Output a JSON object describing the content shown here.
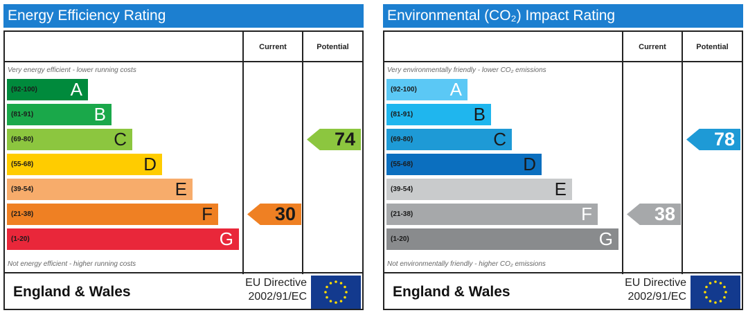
{
  "chart_data": [
    {
      "type": "bar",
      "title": "Energy Efficiency Rating",
      "column_headers": [
        "Current",
        "Potential"
      ],
      "top_note": "Very energy efficient - lower running costs",
      "bottom_note": "Not energy efficient - higher running costs",
      "bands": [
        {
          "range": "(92-100)",
          "letter": "A",
          "color": "#008a3c",
          "length": 0.35
        },
        {
          "range": "(81-91)",
          "letter": "B",
          "color": "#1aa84a",
          "length": 0.45
        },
        {
          "range": "(69-80)",
          "letter": "C",
          "color": "#8cc63f",
          "length": 0.54
        },
        {
          "range": "(55-68)",
          "letter": "D",
          "color": "#ffcc00",
          "length": 0.67
        },
        {
          "range": "(39-54)",
          "letter": "E",
          "color": "#f7ac6b",
          "length": 0.8
        },
        {
          "range": "(21-38)",
          "letter": "F",
          "color": "#ef8023",
          "length": 0.91
        },
        {
          "range": "(1-20)",
          "letter": "G",
          "color": "#e9273a",
          "length": 1.0
        }
      ],
      "current": {
        "value": "30",
        "band": "F",
        "color": "#ef8023"
      },
      "potential": {
        "value": "74",
        "band": "C",
        "color": "#8cc63f"
      },
      "footer_region": "England & Wales",
      "footer_directive": [
        "EU Directive",
        "2002/91/EC"
      ]
    },
    {
      "type": "bar",
      "title": "Environmental (CO₂) Impact Rating",
      "column_headers": [
        "Current",
        "Potential"
      ],
      "top_note": "Very environmentally friendly - lower CO₂ emissions",
      "bottom_note": "Not environmentally friendly - higher CO₂ emissions",
      "bands": [
        {
          "range": "(92-100)",
          "letter": "A",
          "color": "#5bc8f5",
          "length": 0.35
        },
        {
          "range": "(81-91)",
          "letter": "B",
          "color": "#1fb6ee",
          "length": 0.45
        },
        {
          "range": "(69-80)",
          "letter": "C",
          "color": "#1e9ad6",
          "length": 0.54
        },
        {
          "range": "(55-68)",
          "letter": "D",
          "color": "#0b6fbf",
          "length": 0.67
        },
        {
          "range": "(39-54)",
          "letter": "E",
          "color": "#c9cbcc",
          "length": 0.8
        },
        {
          "range": "(21-38)",
          "letter": "F",
          "color": "#a6a8aa",
          "length": 0.91
        },
        {
          "range": "(1-20)",
          "letter": "G",
          "color": "#898b8d",
          "length": 1.0
        }
      ],
      "current": {
        "value": "38",
        "band": "F",
        "color": "#a6a8aa"
      },
      "potential": {
        "value": "78",
        "band": "C",
        "color": "#1e9ad6"
      },
      "footer_region": "England & Wales",
      "footer_directive": [
        "EU Directive",
        "2002/91/EC"
      ]
    }
  ]
}
